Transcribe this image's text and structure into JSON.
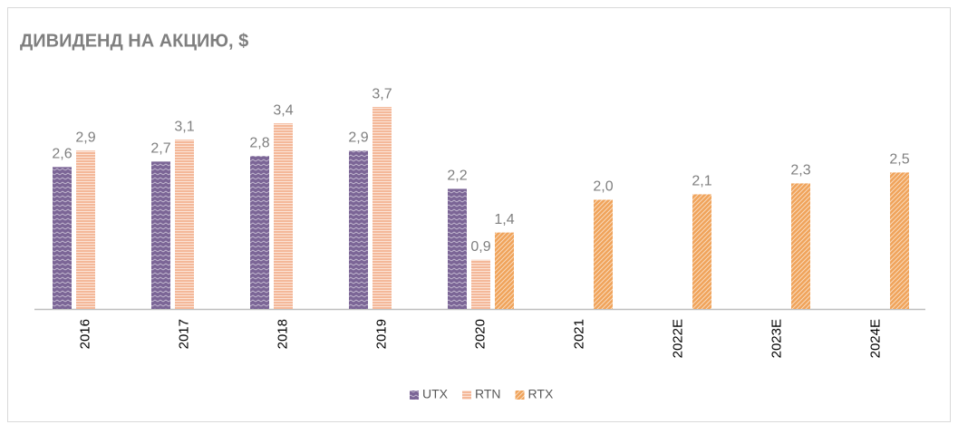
{
  "chart_data": {
    "type": "bar",
    "title": "ДИВИДЕНД НА АКЦИЮ, $",
    "categories": [
      "2016",
      "2017",
      "2018",
      "2019",
      "2020",
      "2021",
      "2022E",
      "2023E",
      "2024E"
    ],
    "series": [
      {
        "name": "UTX",
        "color": "#7b6596",
        "values": [
          2.6,
          2.7,
          2.8,
          2.9,
          2.2,
          null,
          null,
          null,
          null
        ],
        "value_labels": [
          "2,6",
          "2,7",
          "2,8",
          "2,9",
          "2,2",
          null,
          null,
          null,
          null
        ]
      },
      {
        "name": "RTN",
        "color": "#f4b899",
        "values": [
          2.9,
          3.1,
          3.4,
          3.7,
          0.9,
          null,
          null,
          null,
          null
        ],
        "value_labels": [
          "2,9",
          "3,1",
          "3,4",
          "3,7",
          "0,9",
          null,
          null,
          null,
          null
        ]
      },
      {
        "name": "RTX",
        "color": "#f0a35a",
        "values": [
          null,
          null,
          null,
          null,
          1.4,
          2.0,
          2.1,
          2.3,
          2.5
        ],
        "value_labels": [
          null,
          null,
          null,
          null,
          "1,4",
          "2,0",
          "2,1",
          "2,3",
          "2,5"
        ]
      }
    ],
    "ylim": [
      0,
      4
    ],
    "legend": "bottom"
  }
}
